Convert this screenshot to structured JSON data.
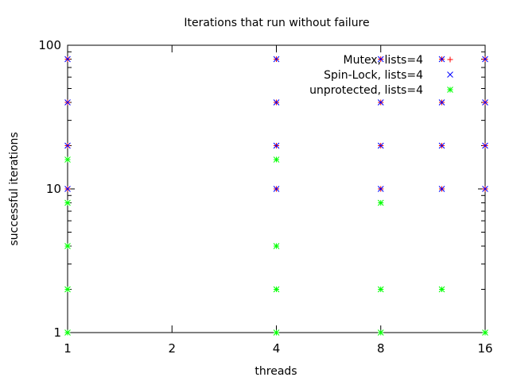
{
  "chart_data": {
    "type": "scatter",
    "title": "Iterations that run without failure",
    "xlabel": "threads",
    "ylabel": "successful iterations",
    "xscale": "log",
    "yscale": "log",
    "xlim": [
      1,
      16
    ],
    "ylim": [
      1,
      100
    ],
    "xticks": [
      1,
      2,
      4,
      8,
      16
    ],
    "yticks": [
      1,
      10,
      100
    ],
    "grid": false,
    "legend_position": "top-right",
    "series": [
      {
        "name": "Mutex, lists=4",
        "color": "#ff0000",
        "marker": "+",
        "points": [
          [
            1,
            10
          ],
          [
            1,
            20
          ],
          [
            1,
            40
          ],
          [
            1,
            80
          ],
          [
            4,
            10
          ],
          [
            4,
            20
          ],
          [
            4,
            40
          ],
          [
            4,
            80
          ],
          [
            8,
            10
          ],
          [
            8,
            20
          ],
          [
            8,
            40
          ],
          [
            8,
            80
          ],
          [
            12,
            10
          ],
          [
            12,
            20
          ],
          [
            12,
            40
          ],
          [
            12,
            80
          ],
          [
            16,
            10
          ],
          [
            16,
            20
          ],
          [
            16,
            40
          ],
          [
            16,
            80
          ]
        ]
      },
      {
        "name": "Spin-Lock, lists=4",
        "color": "#0000ff",
        "marker": "x",
        "points": [
          [
            1,
            10
          ],
          [
            1,
            20
          ],
          [
            1,
            40
          ],
          [
            1,
            80
          ],
          [
            4,
            10
          ],
          [
            4,
            20
          ],
          [
            4,
            40
          ],
          [
            4,
            80
          ],
          [
            8,
            10
          ],
          [
            8,
            20
          ],
          [
            8,
            40
          ],
          [
            8,
            80
          ],
          [
            12,
            10
          ],
          [
            12,
            20
          ],
          [
            12,
            40
          ],
          [
            12,
            80
          ],
          [
            16,
            10
          ],
          [
            16,
            20
          ],
          [
            16,
            40
          ],
          [
            16,
            80
          ]
        ]
      },
      {
        "name": "unprotected, lists=4",
        "color": "#00ff00",
        "marker": "*",
        "points": [
          [
            1,
            1
          ],
          [
            1,
            2
          ],
          [
            1,
            4
          ],
          [
            1,
            8
          ],
          [
            1,
            16
          ],
          [
            4,
            1
          ],
          [
            4,
            2
          ],
          [
            4,
            4
          ],
          [
            4,
            16
          ],
          [
            8,
            1
          ],
          [
            8,
            2
          ],
          [
            8,
            8
          ],
          [
            12,
            2
          ],
          [
            16,
            1
          ]
        ]
      }
    ]
  }
}
